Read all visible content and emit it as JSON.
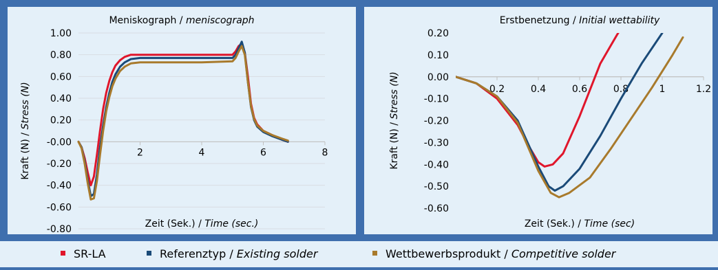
{
  "colors": {
    "red": "#e0162b",
    "blue": "#1a4a78",
    "gold": "#a87a2c",
    "grid": "#d9dde3",
    "axis": "#bfbfbf",
    "panel": "#e4f0f9",
    "frame": "#3f6fae"
  },
  "legend": [
    {
      "marker_color": "#e0162b",
      "label": "SR-LA",
      "label_italic": ""
    },
    {
      "marker_color": "#1a4a78",
      "label": "Referenztyp / ",
      "label_italic": "Existing solder"
    },
    {
      "marker_color": "#a87a2c",
      "label": "Wettbewerbsprodukt / ",
      "label_italic": "Competitive solder"
    }
  ],
  "chart_data": [
    {
      "type": "line",
      "title": "Meniskograph / ",
      "title_italic": "meniscograph",
      "xlabel": "Zeit (Sek.) / ",
      "xlabel_italic": "Time (sec.)",
      "ylabel": "Kraft (N) / ",
      "ylabel_italic": "Stress (N)",
      "xlim": [
        0,
        8
      ],
      "ylim": [
        -0.8,
        1.0
      ],
      "xticks": [
        2,
        4,
        6,
        8
      ],
      "xtick_labels": [
        "2",
        "4",
        "6",
        "8"
      ],
      "yticks": [
        1.0,
        0.8,
        0.6,
        0.4,
        0.2,
        0.0,
        -0.2,
        -0.4,
        -0.6,
        -0.8
      ],
      "ytick_labels": [
        "1.00",
        "0.80",
        "0.60",
        "0.40",
        "0.20",
        "-0.00",
        "-0.20",
        "-0.40",
        "-0.60",
        "-0.80"
      ],
      "grid": true,
      "series": [
        {
          "name": "SR-LA",
          "color": "#e0162b",
          "x": [
            0,
            0.1,
            0.2,
            0.3,
            0.4,
            0.5,
            0.6,
            0.7,
            0.8,
            0.9,
            1.0,
            1.1,
            1.2,
            1.35,
            1.5,
            1.7,
            2.0,
            3.0,
            4.0,
            5.0,
            5.1,
            5.2,
            5.3,
            5.4,
            5.5,
            5.6,
            5.7,
            5.8,
            6.0,
            6.3,
            6.6,
            6.8
          ],
          "y": [
            0,
            -0.05,
            -0.15,
            -0.28,
            -0.4,
            -0.32,
            -0.12,
            0.1,
            0.3,
            0.45,
            0.56,
            0.64,
            0.7,
            0.75,
            0.78,
            0.8,
            0.8,
            0.8,
            0.8,
            0.8,
            0.83,
            0.88,
            0.9,
            0.82,
            0.6,
            0.35,
            0.22,
            0.16,
            0.1,
            0.06,
            0.02,
            0
          ],
          "y_note": ""
        },
        {
          "name": "Referenztyp / Existing solder",
          "color": "#1a4a78",
          "x": [
            0,
            0.1,
            0.2,
            0.3,
            0.4,
            0.5,
            0.6,
            0.7,
            0.8,
            0.9,
            1.0,
            1.1,
            1.2,
            1.35,
            1.5,
            1.7,
            2.0,
            3.0,
            4.0,
            5.0,
            5.1,
            5.2,
            5.3,
            5.4,
            5.5,
            5.6,
            5.7,
            5.8,
            6.0,
            6.3,
            6.6,
            6.8
          ],
          "y": [
            0,
            -0.05,
            -0.18,
            -0.35,
            -0.5,
            -0.48,
            -0.3,
            -0.05,
            0.15,
            0.32,
            0.45,
            0.55,
            0.62,
            0.69,
            0.73,
            0.76,
            0.77,
            0.77,
            0.77,
            0.77,
            0.8,
            0.86,
            0.92,
            0.82,
            0.55,
            0.32,
            0.2,
            0.14,
            0.09,
            0.05,
            0.02,
            0
          ],
          "y_note": ""
        },
        {
          "name": "Wettbewerbsprodukt / Competitive solder",
          "color": "#a87a2c",
          "x": [
            0,
            0.1,
            0.2,
            0.3,
            0.4,
            0.5,
            0.6,
            0.7,
            0.8,
            0.9,
            1.0,
            1.1,
            1.2,
            1.35,
            1.5,
            1.7,
            2.0,
            3.0,
            4.0,
            5.0,
            5.1,
            5.2,
            5.3,
            5.4,
            5.5,
            5.6,
            5.7,
            5.8,
            6.0,
            6.3,
            6.6,
            6.8
          ],
          "y": [
            0,
            -0.06,
            -0.2,
            -0.38,
            -0.53,
            -0.52,
            -0.36,
            -0.12,
            0.1,
            0.28,
            0.41,
            0.51,
            0.58,
            0.65,
            0.69,
            0.72,
            0.73,
            0.73,
            0.73,
            0.74,
            0.77,
            0.83,
            0.88,
            0.8,
            0.55,
            0.33,
            0.21,
            0.15,
            0.1,
            0.06,
            0.03,
            0.01
          ],
          "y_note": ""
        }
      ]
    },
    {
      "type": "line",
      "title": "Erstbenetzung / ",
      "title_italic": "Initial wettability",
      "xlabel": "Zeit (Sek.) / ",
      "xlabel_italic": "Time (sec)",
      "ylabel": "Kraft (N) / ",
      "ylabel_italic": "Stress (N)",
      "xlim": [
        0,
        1.2
      ],
      "ylim": [
        -0.6,
        0.2
      ],
      "xticks": [
        0.2,
        0.4,
        0.6,
        0.8,
        1,
        1.2
      ],
      "xtick_labels": [
        "0.2",
        "0.4",
        "0.6",
        "0.8",
        "1",
        "1.2"
      ],
      "yticks": [
        0.2,
        0.1,
        0.0,
        -0.1,
        -0.2,
        -0.3,
        -0.4,
        -0.5,
        -0.6
      ],
      "ytick_labels": [
        "0.20",
        "0.10",
        "0.00",
        "-0.10",
        "-0.20",
        "-0.30",
        "-0.40",
        "-0.50",
        "-0.60"
      ],
      "grid": false,
      "series": [
        {
          "name": "SR-LA",
          "color": "#e0162b",
          "x": [
            0,
            0.1,
            0.2,
            0.3,
            0.35,
            0.4,
            0.43,
            0.47,
            0.52,
            0.6,
            0.7,
            0.78,
            0.8
          ],
          "y": [
            0,
            -0.03,
            -0.1,
            -0.22,
            -0.31,
            -0.39,
            -0.41,
            -0.4,
            -0.35,
            -0.18,
            0.06,
            0.19,
            0.22
          ],
          "y_note": ""
        },
        {
          "name": "Referenztyp / Existing solder",
          "color": "#1a4a78",
          "x": [
            0,
            0.1,
            0.2,
            0.3,
            0.4,
            0.45,
            0.48,
            0.52,
            0.6,
            0.7,
            0.8,
            0.9,
            1.0
          ],
          "y": [
            0,
            -0.03,
            -0.09,
            -0.2,
            -0.41,
            -0.5,
            -0.52,
            -0.5,
            -0.42,
            -0.27,
            -0.1,
            0.06,
            0.2
          ],
          "y_note": ""
        },
        {
          "name": "Wettbewerbsprodukt / Competitive solder",
          "color": "#a87a2c",
          "x": [
            0,
            0.1,
            0.2,
            0.3,
            0.4,
            0.46,
            0.5,
            0.55,
            0.65,
            0.75,
            0.85,
            0.95,
            1.05,
            1.1
          ],
          "y": [
            0,
            -0.03,
            -0.09,
            -0.21,
            -0.43,
            -0.53,
            -0.55,
            -0.53,
            -0.46,
            -0.33,
            -0.19,
            -0.05,
            0.1,
            0.18
          ],
          "y_note": ""
        }
      ]
    }
  ]
}
